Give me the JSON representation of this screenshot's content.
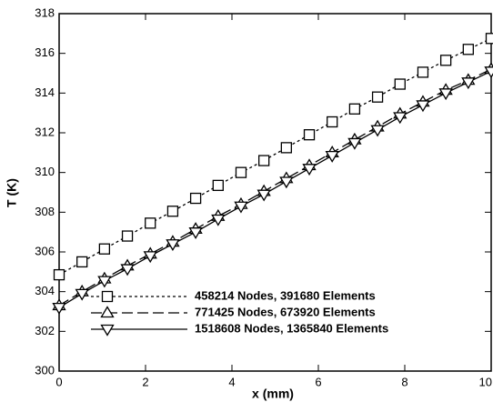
{
  "chart_data": {
    "type": "line",
    "x_label": "x (mm)",
    "y_label": "T (K)",
    "x": [
      0,
      0.53,
      1.05,
      1.58,
      2.11,
      2.63,
      3.16,
      3.68,
      4.21,
      4.74,
      5.26,
      5.79,
      6.32,
      6.84,
      7.37,
      7.89,
      8.42,
      8.95,
      9.47,
      10
    ],
    "series": [
      {
        "name": "458214 Nodes, 391680 Elements",
        "color": "#000000",
        "marker": "square",
        "dash": "3,3",
        "values": [
          304.85,
          305.5,
          306.15,
          306.8,
          307.45,
          308.05,
          308.7,
          309.35,
          310.0,
          310.6,
          311.25,
          311.9,
          312.55,
          313.2,
          313.8,
          314.45,
          315.05,
          315.65,
          316.2,
          316.75
        ]
      },
      {
        "name": "771425 Nodes, 673920 Elements",
        "color": "#000000",
        "marker": "triangle-up",
        "dash": "12,5",
        "values": [
          303.3,
          304.0,
          304.65,
          305.3,
          305.9,
          306.5,
          307.15,
          307.8,
          308.4,
          309.05,
          309.7,
          310.35,
          311.0,
          311.65,
          312.3,
          312.95,
          313.55,
          314.15,
          314.65,
          315.2
        ]
      },
      {
        "name": "1518608 Nodes, 1365840 Elements",
        "color": "#000000",
        "marker": "triangle-down",
        "dash": "none",
        "values": [
          303.2,
          303.9,
          304.55,
          305.15,
          305.8,
          306.4,
          307.0,
          307.65,
          308.3,
          308.9,
          309.55,
          310.2,
          310.85,
          311.5,
          312.15,
          312.8,
          313.4,
          314.0,
          314.55,
          315.1
        ]
      }
    ],
    "xlim": [
      0,
      10
    ],
    "xticks": [
      0,
      2,
      4,
      6,
      8,
      10
    ],
    "ylim": [
      300,
      318
    ],
    "yticks": [
      300,
      302,
      304,
      306,
      308,
      310,
      312,
      314,
      316,
      318
    ]
  }
}
